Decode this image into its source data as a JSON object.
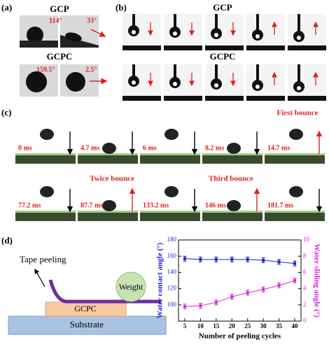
{
  "panels": {
    "a": {
      "label": "(a)",
      "top_title": "GCP",
      "gcp_angles": [
        "114°",
        "33°"
      ],
      "bottom_title": "GCPC",
      "gcpc_angles": [
        "159.5°",
        "2.5°"
      ]
    },
    "b": {
      "label": "(b)",
      "top_title": "GCP",
      "bottom_title": "GCPC"
    },
    "c": {
      "label": "(c)",
      "times": [
        "0 ms",
        "4.7 ms",
        "6 ms",
        "8.2 ms",
        "14.7 ms",
        "77.2 ms",
        "87.7 ms",
        "133.2 ms",
        "146 ms",
        "181.7 ms"
      ],
      "bounces": [
        "First bounce",
        "Twice bounce",
        "Third bounce"
      ]
    },
    "d": {
      "label": "(d)",
      "tape": "Tape peeling",
      "weight": "Weight",
      "layer": "GCPC",
      "substrate": "Substrate"
    }
  },
  "chart_data": {
    "type": "line",
    "x_label": "Number of peeling cycles",
    "y_label": "Water contact angle (°)",
    "y2_label": "Water sliding angle (°)",
    "x": [
      5,
      10,
      15,
      20,
      25,
      30,
      35,
      40
    ],
    "xlim": [
      3,
      42
    ],
    "xticks": [
      5,
      10,
      15,
      20,
      25,
      30,
      35,
      40
    ],
    "ylim": [
      80,
      180
    ],
    "yticks": [
      100,
      120,
      140,
      160,
      180
    ],
    "y2lim": [
      0,
      10
    ],
    "y2ticks": [
      0,
      2,
      4,
      6,
      8,
      10
    ],
    "series": [
      {
        "name": "Water contact angle",
        "color": "#1f1fd6",
        "values": [
          157,
          156,
          156,
          156,
          156,
          155,
          153,
          151
        ],
        "errors": [
          3,
          3,
          3,
          3,
          3,
          3,
          3,
          3
        ]
      },
      {
        "name": "Water sliding angle",
        "color": "#e020e0",
        "axis": "y2",
        "values": [
          1.8,
          1.9,
          2.3,
          3.0,
          3.5,
          3.9,
          4.4,
          5.0
        ],
        "errors": [
          0.3,
          0.3,
          0.3,
          0.3,
          0.3,
          0.3,
          0.3,
          0.3
        ]
      }
    ]
  }
}
